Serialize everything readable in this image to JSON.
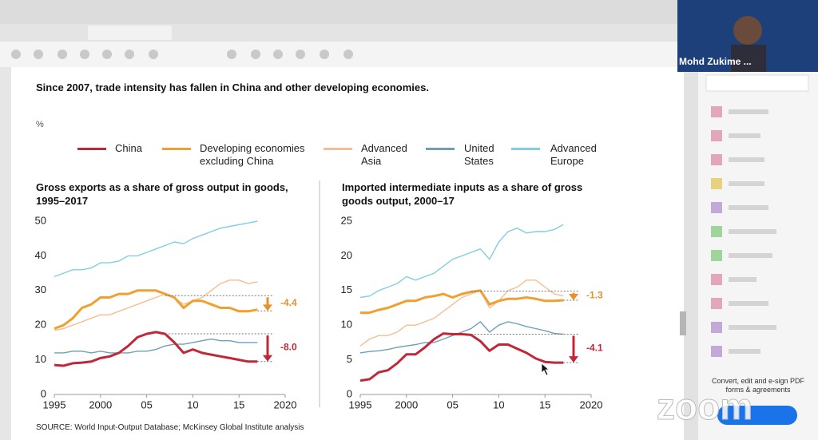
{
  "video": {
    "name": "Mohd Zukime ..."
  },
  "sidebar": {
    "promo": "Convert, edit and e-sign PDF forms & agreements"
  },
  "watermark": "zoom",
  "document": {
    "headline": "Since 2007, trade intensity has fallen in China and other developing economies.",
    "unit": "%",
    "source": "SOURCE:  World Input-Output Database; McKinsey Global Institute analysis"
  },
  "chart_data": [
    {
      "type": "line",
      "title": "Gross exports as a share of gross output in goods, 1995–2017",
      "x": [
        1995,
        1996,
        1997,
        1998,
        1999,
        2000,
        2001,
        2002,
        2003,
        2004,
        2005,
        2006,
        2007,
        2008,
        2009,
        2010,
        2011,
        2012,
        2013,
        2014,
        2015,
        2016,
        2017
      ],
      "xlim": [
        1995,
        2020
      ],
      "xticks": [
        1995,
        2000,
        {
          "value": 2005,
          "label": "05"
        },
        {
          "value": 2010,
          "label": "10"
        },
        {
          "value": 2015,
          "label": "15"
        },
        2020
      ],
      "ylim": [
        0,
        50
      ],
      "yticks": [
        0,
        10,
        20,
        30,
        40,
        50
      ],
      "series": [
        {
          "name": "China",
          "color": "#c0283a",
          "values": [
            8.5,
            8.3,
            9,
            9.2,
            9.5,
            10.5,
            11,
            12,
            14,
            16.5,
            17.5,
            18,
            17.5,
            15,
            12,
            13,
            12,
            11.5,
            11,
            10.5,
            10,
            9.5,
            9.5
          ]
        },
        {
          "name": "Developing economies excluding China",
          "color": "#f0a030",
          "values": [
            19,
            20,
            22,
            25,
            26,
            28,
            28,
            29,
            29,
            30,
            30,
            30,
            29,
            28,
            25,
            27,
            27,
            26,
            25,
            25,
            24,
            24,
            24.5
          ]
        },
        {
          "name": "Advanced Asia",
          "color": "#f4bd92",
          "values": [
            18.5,
            19,
            20,
            21,
            22,
            23,
            23,
            24,
            25,
            26,
            27,
            28,
            29,
            28,
            26,
            27,
            28,
            30,
            32,
            33,
            33,
            32,
            32.5
          ]
        },
        {
          "name": "United States",
          "color": "#6f9fb6",
          "values": [
            12,
            12,
            12.5,
            12.5,
            12,
            12.5,
            12,
            12,
            12,
            12.5,
            12.5,
            13,
            14,
            14.5,
            14.5,
            15,
            15.5,
            16,
            15.5,
            15.5,
            15,
            15,
            15
          ]
        },
        {
          "name": "Advanced Europe",
          "color": "#82cde2",
          "values": [
            34,
            35,
            36,
            36,
            36.5,
            38,
            38,
            38.5,
            40,
            40,
            41,
            42,
            43,
            44,
            43.5,
            45,
            46,
            47,
            48,
            48.5,
            49,
            49.5,
            50
          ]
        }
      ],
      "annotations": [
        {
          "text": "-4.4",
          "from": 28.5,
          "to": 24.1,
          "color": "#e8902a"
        },
        {
          "text": "-8.0",
          "from": 17.5,
          "to": 9.5,
          "color": "#c0283a"
        }
      ]
    },
    {
      "type": "line",
      "title": "Imported intermediate inputs as a share of gross goods output, 2000–17",
      "x": [
        1995,
        1996,
        1997,
        1998,
        1999,
        2000,
        2001,
        2002,
        2003,
        2004,
        2005,
        2006,
        2007,
        2008,
        2009,
        2010,
        2011,
        2012,
        2013,
        2014,
        2015,
        2016,
        2017
      ],
      "xlim": [
        1995,
        2020
      ],
      "xticks": [
        1995,
        2000,
        {
          "value": 2005,
          "label": "05"
        },
        {
          "value": 2010,
          "label": "10"
        },
        {
          "value": 2015,
          "label": "15"
        },
        2020
      ],
      "ylim": [
        0,
        25
      ],
      "yticks": [
        0,
        5,
        10,
        15,
        20,
        25
      ],
      "series": [
        {
          "color": "#c0283a",
          "values": [
            2,
            2.2,
            3.2,
            3.5,
            4.5,
            5.8,
            5.8,
            6.8,
            8,
            8.8,
            8.7,
            8.7,
            8.6,
            7.7,
            6.3,
            7.2,
            7.2,
            6.6,
            6,
            5.2,
            4.7,
            4.6,
            4.6
          ]
        },
        {
          "color": "#f0a030",
          "values": [
            11.8,
            11.8,
            12.2,
            12.5,
            13,
            13.5,
            13.5,
            14,
            14.2,
            14.5,
            14,
            14.5,
            14.8,
            15,
            13,
            13.5,
            13.8,
            13.8,
            14,
            13.8,
            13.5,
            13.5,
            13.6
          ]
        },
        {
          "color": "#f4bd92",
          "values": [
            7,
            8,
            8.5,
            8.5,
            9,
            10,
            10,
            10.5,
            11,
            12,
            13,
            14,
            14.5,
            15,
            12.5,
            13.5,
            15,
            15.5,
            16.5,
            16.5,
            15.5,
            14.5,
            14.2
          ]
        },
        {
          "color": "#6f9fb6",
          "values": [
            6,
            6.2,
            6.3,
            6.5,
            6.8,
            7,
            7.2,
            7.5,
            7.5,
            8,
            8.5,
            9,
            9.5,
            10.5,
            9,
            10,
            10.5,
            10.2,
            9.8,
            9.5,
            9.2,
            8.8,
            8.7
          ]
        },
        {
          "color": "#82cde2",
          "values": [
            14,
            14.2,
            15,
            15.5,
            16,
            17,
            16.5,
            17,
            17.5,
            18.5,
            19.5,
            20,
            20.5,
            21,
            19.5,
            22,
            23.5,
            24,
            23.3,
            23.5,
            23.5,
            23.8,
            24.5
          ]
        }
      ],
      "annotations": [
        {
          "text": "-1.3",
          "from": 14.9,
          "to": 13.6,
          "color": "#e8902a"
        },
        {
          "text": "-4.1",
          "from": 8.7,
          "to": 4.6,
          "color": "#c0283a"
        }
      ]
    }
  ]
}
